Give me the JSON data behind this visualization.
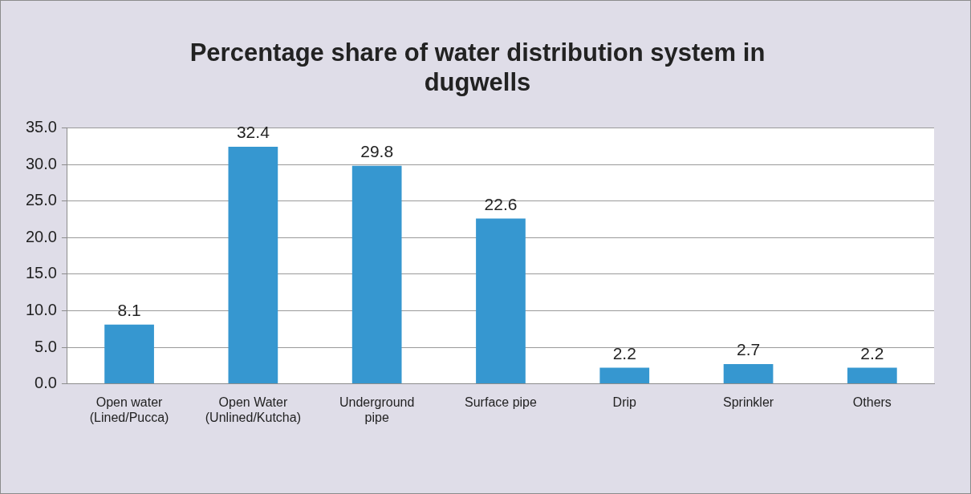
{
  "chart_data": {
    "type": "bar",
    "title": "Percentage share of water distribution system in dugwells",
    "categories": [
      "Open water (Lined/Pucca)",
      "Open Water (Unlined/Kutcha)",
      "Underground pipe",
      "Surface pipe",
      "Drip",
      "Sprinkler",
      "Others"
    ],
    "values": [
      8.1,
      32.4,
      29.8,
      22.6,
      2.2,
      2.7,
      2.2
    ],
    "color": "#3697d0",
    "ylim": [
      0,
      35
    ],
    "yticks": [
      {
        "value": 0,
        "label": "0.0"
      },
      {
        "value": 5,
        "label": "5.0"
      },
      {
        "value": 10,
        "label": "10.0"
      },
      {
        "value": 15,
        "label": "15.0"
      },
      {
        "value": 20,
        "label": "20.0"
      },
      {
        "value": 25,
        "label": "25.0"
      },
      {
        "value": 30,
        "label": "30.0"
      },
      {
        "value": 35,
        "label": "35.0"
      }
    ],
    "grid": "y",
    "legend": false,
    "data_labels": true
  }
}
